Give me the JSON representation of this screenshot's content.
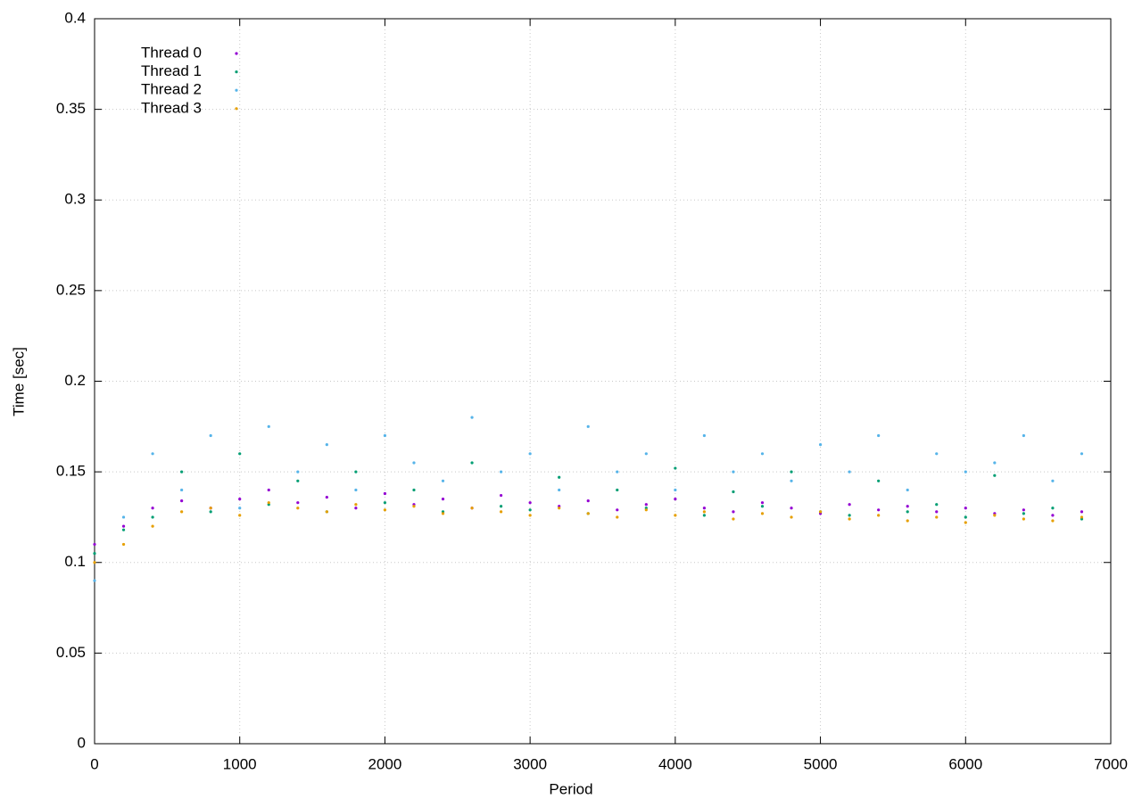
{
  "chart_data": {
    "type": "scatter",
    "xlabel": "Period",
    "ylabel": "Time [sec]",
    "xlim": [
      0,
      7000
    ],
    "ylim": [
      0,
      0.4
    ],
    "xticks": [
      0,
      1000,
      2000,
      3000,
      4000,
      5000,
      6000,
      7000
    ],
    "yticks": [
      0,
      0.05,
      0.1,
      0.15,
      0.2,
      0.25,
      0.3,
      0.35,
      0.4
    ],
    "grid": true,
    "legend": "top-left",
    "x": [
      0,
      200,
      400,
      600,
      800,
      1000,
      1200,
      1400,
      1600,
      1800,
      2000,
      2200,
      2400,
      2600,
      2800,
      3000,
      3200,
      3400,
      3600,
      3800,
      4000,
      4200,
      4400,
      4600,
      4800,
      5000,
      5200,
      5400,
      5600,
      5800,
      6000,
      6200,
      6400,
      6600,
      6800
    ],
    "series": [
      {
        "name": "Thread 0",
        "color": "#9400d3",
        "values": [
          0.11,
          0.12,
          0.13,
          0.134,
          0.13,
          0.135,
          0.14,
          0.133,
          0.136,
          0.13,
          0.138,
          0.132,
          0.135,
          0.13,
          0.137,
          0.133,
          0.131,
          0.134,
          0.129,
          0.132,
          0.135,
          0.13,
          0.128,
          0.133,
          0.13,
          0.127,
          0.132,
          0.129,
          0.131,
          0.128,
          0.13,
          0.127,
          0.129,
          0.126,
          0.128
        ]
      },
      {
        "name": "Thread 1",
        "color": "#009e73",
        "values": [
          0.105,
          0.118,
          0.125,
          0.15,
          0.128,
          0.16,
          0.132,
          0.145,
          0.128,
          0.15,
          0.133,
          0.14,
          0.128,
          0.155,
          0.131,
          0.129,
          0.147,
          0.127,
          0.14,
          0.13,
          0.152,
          0.126,
          0.139,
          0.131,
          0.15,
          0.128,
          0.126,
          0.145,
          0.128,
          0.132,
          0.125,
          0.148,
          0.127,
          0.13,
          0.124
        ]
      },
      {
        "name": "Thread 2",
        "color": "#56b4e9",
        "values": [
          0.09,
          0.125,
          0.16,
          0.14,
          0.17,
          0.13,
          0.175,
          0.15,
          0.165,
          0.14,
          0.17,
          0.155,
          0.145,
          0.18,
          0.15,
          0.16,
          0.14,
          0.175,
          0.15,
          0.16,
          0.14,
          0.17,
          0.15,
          0.16,
          0.145,
          0.165,
          0.15,
          0.17,
          0.14,
          0.16,
          0.15,
          0.155,
          0.17,
          0.145,
          0.16
        ]
      },
      {
        "name": "Thread 3",
        "color": "#e69f00",
        "values": [
          0.1,
          0.11,
          0.12,
          0.128,
          0.13,
          0.126,
          0.133,
          0.13,
          0.128,
          0.132,
          0.129,
          0.131,
          0.127,
          0.13,
          0.128,
          0.126,
          0.13,
          0.127,
          0.125,
          0.129,
          0.126,
          0.128,
          0.124,
          0.127,
          0.125,
          0.128,
          0.124,
          0.126,
          0.123,
          0.125,
          0.122,
          0.126,
          0.124,
          0.123,
          0.125
        ]
      }
    ]
  }
}
